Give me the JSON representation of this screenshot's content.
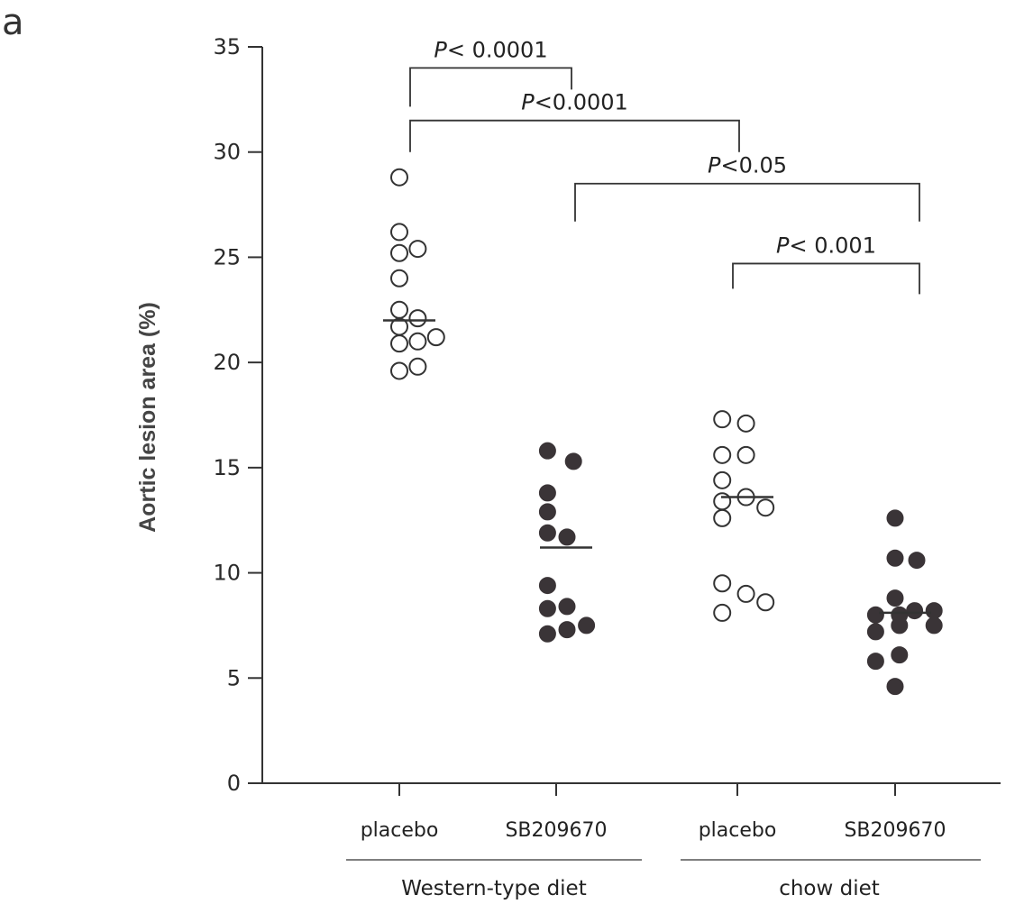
{
  "panel_label": "a",
  "chart_data": {
    "type": "scatter",
    "ylabel": "Aortic lesion area (%)",
    "ylim": [
      0,
      35
    ],
    "yticks": [
      0,
      5,
      10,
      15,
      20,
      25,
      30,
      35
    ],
    "categories": [
      "placebo",
      "SB209670",
      "placebo",
      "SB209670"
    ],
    "groups": [
      {
        "label": "Western-type diet",
        "categories": [
          0,
          1
        ]
      },
      {
        "label": "chow diet",
        "categories": [
          2,
          3
        ]
      }
    ],
    "series": [
      {
        "category": 0,
        "marker": "open",
        "median": 22.0,
        "points": [
          [
            0,
            28.8
          ],
          [
            0,
            26.2
          ],
          [
            0.85,
            25.4
          ],
          [
            0,
            25.2
          ],
          [
            0,
            24.0
          ],
          [
            0,
            22.5
          ],
          [
            0.85,
            22.1
          ],
          [
            0,
            21.7
          ],
          [
            0.85,
            21.0
          ],
          [
            1.7,
            21.2
          ],
          [
            0,
            20.9
          ],
          [
            0,
            19.6
          ],
          [
            0.85,
            19.8
          ]
        ]
      },
      {
        "category": 1,
        "marker": "filled",
        "median": 11.2,
        "points": [
          [
            -0.4,
            15.8
          ],
          [
            0.8,
            15.3
          ],
          [
            -0.4,
            13.8
          ],
          [
            -0.4,
            12.9
          ],
          [
            -0.4,
            11.9
          ],
          [
            0.5,
            11.7
          ],
          [
            -0.4,
            9.4
          ],
          [
            -0.4,
            8.3
          ],
          [
            0.5,
            8.4
          ],
          [
            -0.4,
            7.1
          ],
          [
            0.5,
            7.3
          ],
          [
            1.4,
            7.5
          ]
        ]
      },
      {
        "category": 2,
        "marker": "open",
        "median": 13.6,
        "points": [
          [
            -0.7,
            17.3
          ],
          [
            0.4,
            17.1
          ],
          [
            -0.7,
            15.6
          ],
          [
            0.4,
            15.6
          ],
          [
            -0.7,
            14.4
          ],
          [
            0.4,
            13.6
          ],
          [
            -0.7,
            13.4
          ],
          [
            -0.7,
            12.6
          ],
          [
            1.3,
            13.1
          ],
          [
            -0.7,
            9.5
          ],
          [
            0.4,
            9.0
          ],
          [
            1.3,
            8.6
          ],
          [
            -0.7,
            8.1
          ]
        ]
      },
      {
        "category": 3,
        "marker": "filled",
        "median": 8.1,
        "points": [
          [
            0,
            12.6
          ],
          [
            0,
            10.7
          ],
          [
            1.0,
            10.6
          ],
          [
            0,
            8.8
          ],
          [
            -0.9,
            8.0
          ],
          [
            0.2,
            8.0
          ],
          [
            0.9,
            8.2
          ],
          [
            1.8,
            8.2
          ],
          [
            -0.9,
            7.2
          ],
          [
            0.2,
            7.5
          ],
          [
            1.8,
            7.5
          ],
          [
            -0.9,
            5.8
          ],
          [
            0.2,
            6.1
          ],
          [
            0,
            4.6
          ]
        ]
      }
    ],
    "comparisons": [
      {
        "from": 0,
        "to": 1,
        "y": 34.0,
        "label": "P< 0.0001"
      },
      {
        "from": 0,
        "to": 2,
        "y": 31.5,
        "label": "P<0.0001"
      },
      {
        "from": 1,
        "to": 3,
        "y": 28.5,
        "label": "P<0.05"
      },
      {
        "from": 2,
        "to": 3,
        "y": 24.7,
        "label": "P< 0.001"
      }
    ]
  }
}
